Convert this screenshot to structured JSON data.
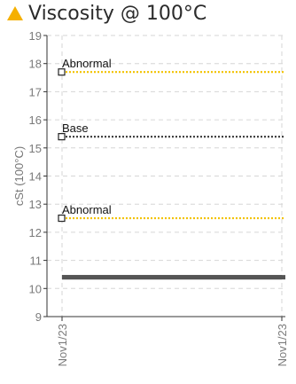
{
  "header": {
    "title": "Viscosity @ 100°C",
    "icon": "warning-triangle-icon",
    "icon_color": "#f5b000"
  },
  "chart_data": {
    "type": "line",
    "title": "Viscosity @ 100°C",
    "ylabel": "cSt (100°C)",
    "xlabel": "",
    "ylim": [
      9,
      19
    ],
    "yticks": [
      9,
      10,
      11,
      12,
      13,
      14,
      15,
      16,
      17,
      18,
      19
    ],
    "x_tick_labels": [
      "Nov1/23",
      "Nov1/23"
    ],
    "grid": true,
    "reference_lines": [
      {
        "label": "Abnormal",
        "value": 17.7,
        "color": "#f2c200",
        "style": "dotted"
      },
      {
        "label": "Base",
        "value": 15.4,
        "color": "#444444",
        "style": "dotted"
      },
      {
        "label": "Abnormal",
        "value": 12.5,
        "color": "#f2c200",
        "style": "dotted"
      }
    ],
    "series": [
      {
        "values": [
          10.4,
          10.4
        ],
        "color": "#555555"
      }
    ]
  }
}
